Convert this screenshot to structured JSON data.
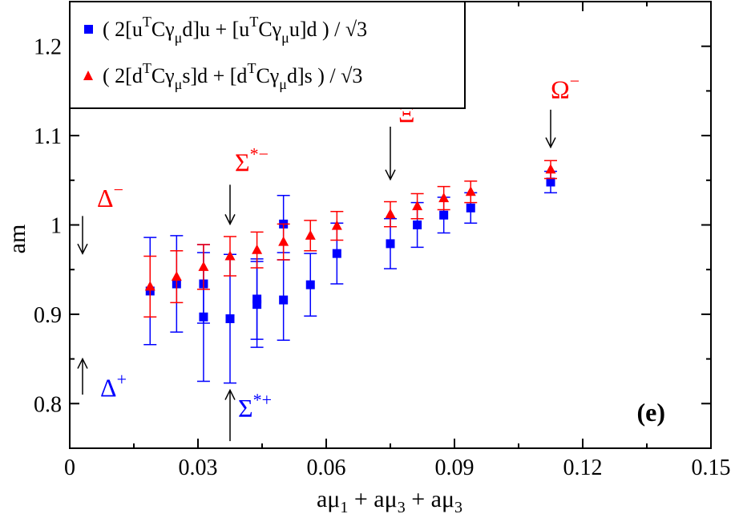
{
  "chart_data": {
    "type": "scatter",
    "xlabel": "aμ1 + aμ3 + aμ3",
    "ylabel": "am",
    "xlim": [
      0,
      0.15
    ],
    "ylim": [
      0.75,
      1.25
    ],
    "xticks": [
      "0",
      "0.03",
      "0.06",
      "0.09",
      "0.12",
      "0.15"
    ],
    "yticks": [
      "0.8",
      "0.9",
      "1",
      "1.1",
      "1.2"
    ],
    "panel_label": "(e)",
    "legend": {
      "placement": "top-left",
      "entries": [
        "( 2[uTCγμd]u + [uTCγμu]d ) / √3",
        "( 2[dTCγμs]d + [dTCγμd]s ) / √3"
      ]
    },
    "series": [
      {
        "name": "( 2[uTCγμd]u + [uTCγμu]d ) / √3",
        "color": "#0000ff",
        "marker": "square",
        "points": [
          {
            "x": 0.0188,
            "y": 0.926,
            "err": 0.06
          },
          {
            "x": 0.025,
            "y": 0.934,
            "err": 0.054
          },
          {
            "x": 0.0313,
            "y": 0.897,
            "err": 0.072
          },
          {
            "x": 0.0313,
            "y": 0.934,
            "err": 0.044
          },
          {
            "x": 0.0375,
            "y": 0.895,
            "err": 0.072
          },
          {
            "x": 0.0438,
            "y": 0.911,
            "err": 0.048
          },
          {
            "x": 0.0438,
            "y": 0.917,
            "err": 0.045
          },
          {
            "x": 0.05,
            "y": 0.916,
            "err": 0.045
          },
          {
            "x": 0.05,
            "y": 1.001,
            "err": 0.032
          },
          {
            "x": 0.0563,
            "y": 0.933,
            "err": 0.035
          },
          {
            "x": 0.0625,
            "y": 0.968,
            "err": 0.034
          },
          {
            "x": 0.075,
            "y": 0.979,
            "err": 0.028
          },
          {
            "x": 0.0813,
            "y": 1.0,
            "err": 0.025
          },
          {
            "x": 0.0875,
            "y": 1.011,
            "err": 0.02
          },
          {
            "x": 0.0938,
            "y": 1.019,
            "err": 0.017
          },
          {
            "x": 0.1125,
            "y": 1.048,
            "err": 0.012
          }
        ]
      },
      {
        "name": "( 2[dTCγμs]d + [dTCγμd]s ) / √3",
        "color": "#ff0000",
        "marker": "triangle",
        "points": [
          {
            "x": 0.0188,
            "y": 0.931,
            "err": 0.034
          },
          {
            "x": 0.025,
            "y": 0.942,
            "err": 0.029
          },
          {
            "x": 0.0313,
            "y": 0.953,
            "err": 0.025
          },
          {
            "x": 0.0375,
            "y": 0.965,
            "err": 0.022
          },
          {
            "x": 0.0438,
            "y": 0.972,
            "err": 0.02
          },
          {
            "x": 0.05,
            "y": 0.981,
            "err": 0.02
          },
          {
            "x": 0.0563,
            "y": 0.988,
            "err": 0.017
          },
          {
            "x": 0.0625,
            "y": 0.999,
            "err": 0.016
          },
          {
            "x": 0.075,
            "y": 1.012,
            "err": 0.014
          },
          {
            "x": 0.0813,
            "y": 1.021,
            "err": 0.014
          },
          {
            "x": 0.0875,
            "y": 1.03,
            "err": 0.013
          },
          {
            "x": 0.0938,
            "y": 1.037,
            "err": 0.012
          },
          {
            "x": 0.1125,
            "y": 1.062,
            "err": 0.01
          }
        ]
      }
    ],
    "annotations": [
      {
        "label": "Δ",
        "sup": "−",
        "x": 0.003,
        "y_arrow_top": 1.01,
        "y_arrow_bottom": 0.968,
        "direction": "down",
        "color": "#ff0000"
      },
      {
        "label": "Δ",
        "sup": "+",
        "x": 0.003,
        "y_arrow_top": 0.85,
        "y_arrow_bottom": 0.81,
        "direction": "up",
        "color": "#0000ff"
      },
      {
        "label": "Σ",
        "sup": "*−",
        "x": 0.0375,
        "y_arrow_top": 1.045,
        "y_arrow_bottom": 1.001,
        "direction": "down",
        "color": "#ff0000"
      },
      {
        "label": "Σ",
        "sup": "*+",
        "x": 0.0375,
        "y_arrow_top": 0.815,
        "y_arrow_bottom": 0.758,
        "direction": "up",
        "color": "#0000ff"
      },
      {
        "label": "Ξ",
        "sup": "*−",
        "x": 0.075,
        "y_arrow_top": 1.11,
        "y_arrow_bottom": 1.051,
        "direction": "down",
        "color": "#ff0000"
      },
      {
        "label": "Ω",
        "sup": "−",
        "x": 0.1125,
        "y_arrow_top": 1.129,
        "y_arrow_bottom": 1.087,
        "direction": "down",
        "color": "#ff0000"
      }
    ]
  }
}
